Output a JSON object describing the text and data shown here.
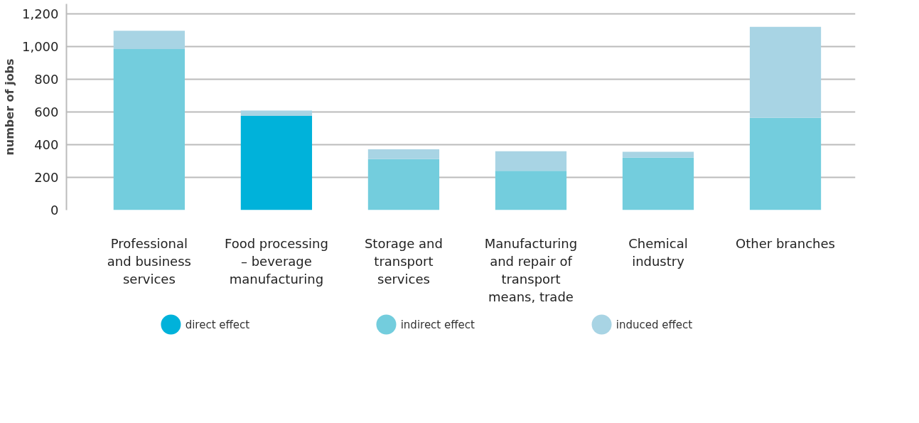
{
  "chart_data": {
    "type": "bar",
    "stacked": true,
    "ylabel": "number of jobs",
    "categories": [
      "Professional and business services",
      "Food processing – beverage manufacturing",
      "Storage and transport services",
      "Manufacturing and repair of transport means, trade",
      "Chemical industry",
      "Other branches"
    ],
    "series": [
      {
        "name": "direct effect",
        "color": "#00b2da",
        "values": [
          null,
          576,
          null,
          null,
          null,
          null
        ]
      },
      {
        "name": "indirect effect",
        "color": "#73cddd",
        "values": [
          984,
          null,
          312,
          240,
          320,
          564
        ]
      },
      {
        "name": "induced effect",
        "color": "#a8d4e4",
        "values": [
          112,
          32,
          60,
          120,
          36,
          556
        ]
      }
    ],
    "ylim": [
      0,
      1200
    ],
    "yticks": [
      0,
      200,
      400,
      600,
      800,
      {
        "value": 1000,
        "label": "1,000"
      },
      {
        "value": 1200,
        "label": "1,200"
      }
    ],
    "grid": "y",
    "legend": "bottom",
    "marker": "circle"
  }
}
